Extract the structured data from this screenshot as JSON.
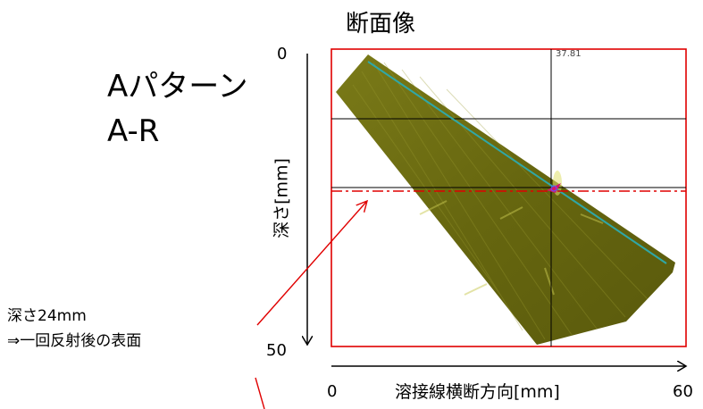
{
  "title": "断面像",
  "pattern_label": "Aパターン",
  "pattern_sub": "A-R",
  "y_axis": {
    "label": "深さ[mm]",
    "min": "0",
    "max": "50"
  },
  "x_axis": {
    "label": "溶接線横断方向[mm]",
    "min": "0",
    "max": "60"
  },
  "annotation": {
    "line1": "深さ24mm",
    "line2": "⇒一回反射後の表面"
  },
  "cursor_readout": "37.81",
  "colors": {
    "frame": "#e00000",
    "scan_fill": "#6b6b12",
    "beam_line": "#2fa7a7",
    "cursor": "#000000",
    "marker": "#d4146e",
    "arrow": "#e00000"
  }
}
